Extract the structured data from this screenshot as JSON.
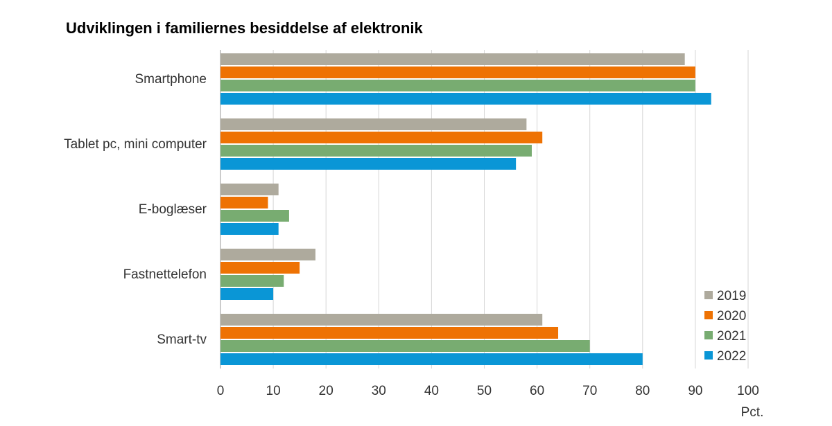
{
  "chart_data": {
    "type": "bar",
    "orientation": "horizontal",
    "title": "Udviklingen i familiernes besiddelse af elektronik",
    "xlabel": "Pct.",
    "ylabel": "",
    "categories": [
      "Smartphone",
      "Tablet pc, mini computer",
      "E-boglæser",
      "Fastnettelefon",
      "Smart-tv"
    ],
    "series": [
      {
        "name": "2019",
        "color": "#aeaa9d",
        "values": [
          88,
          58,
          11,
          18,
          61
        ]
      },
      {
        "name": "2020",
        "color": "#ee7203",
        "values": [
          90,
          61,
          9,
          15,
          64
        ]
      },
      {
        "name": "2021",
        "color": "#78ac71",
        "values": [
          90,
          59,
          13,
          12,
          70
        ]
      },
      {
        "name": "2022",
        "color": "#0a96d6",
        "values": [
          93,
          56,
          11,
          10,
          80
        ]
      }
    ],
    "xlim": [
      0,
      100
    ],
    "xticks": [
      "0",
      "10",
      "20",
      "30",
      "40",
      "50",
      "60",
      "70",
      "80",
      "90",
      "100"
    ],
    "grid": true,
    "legend_position": "bottom-right"
  }
}
